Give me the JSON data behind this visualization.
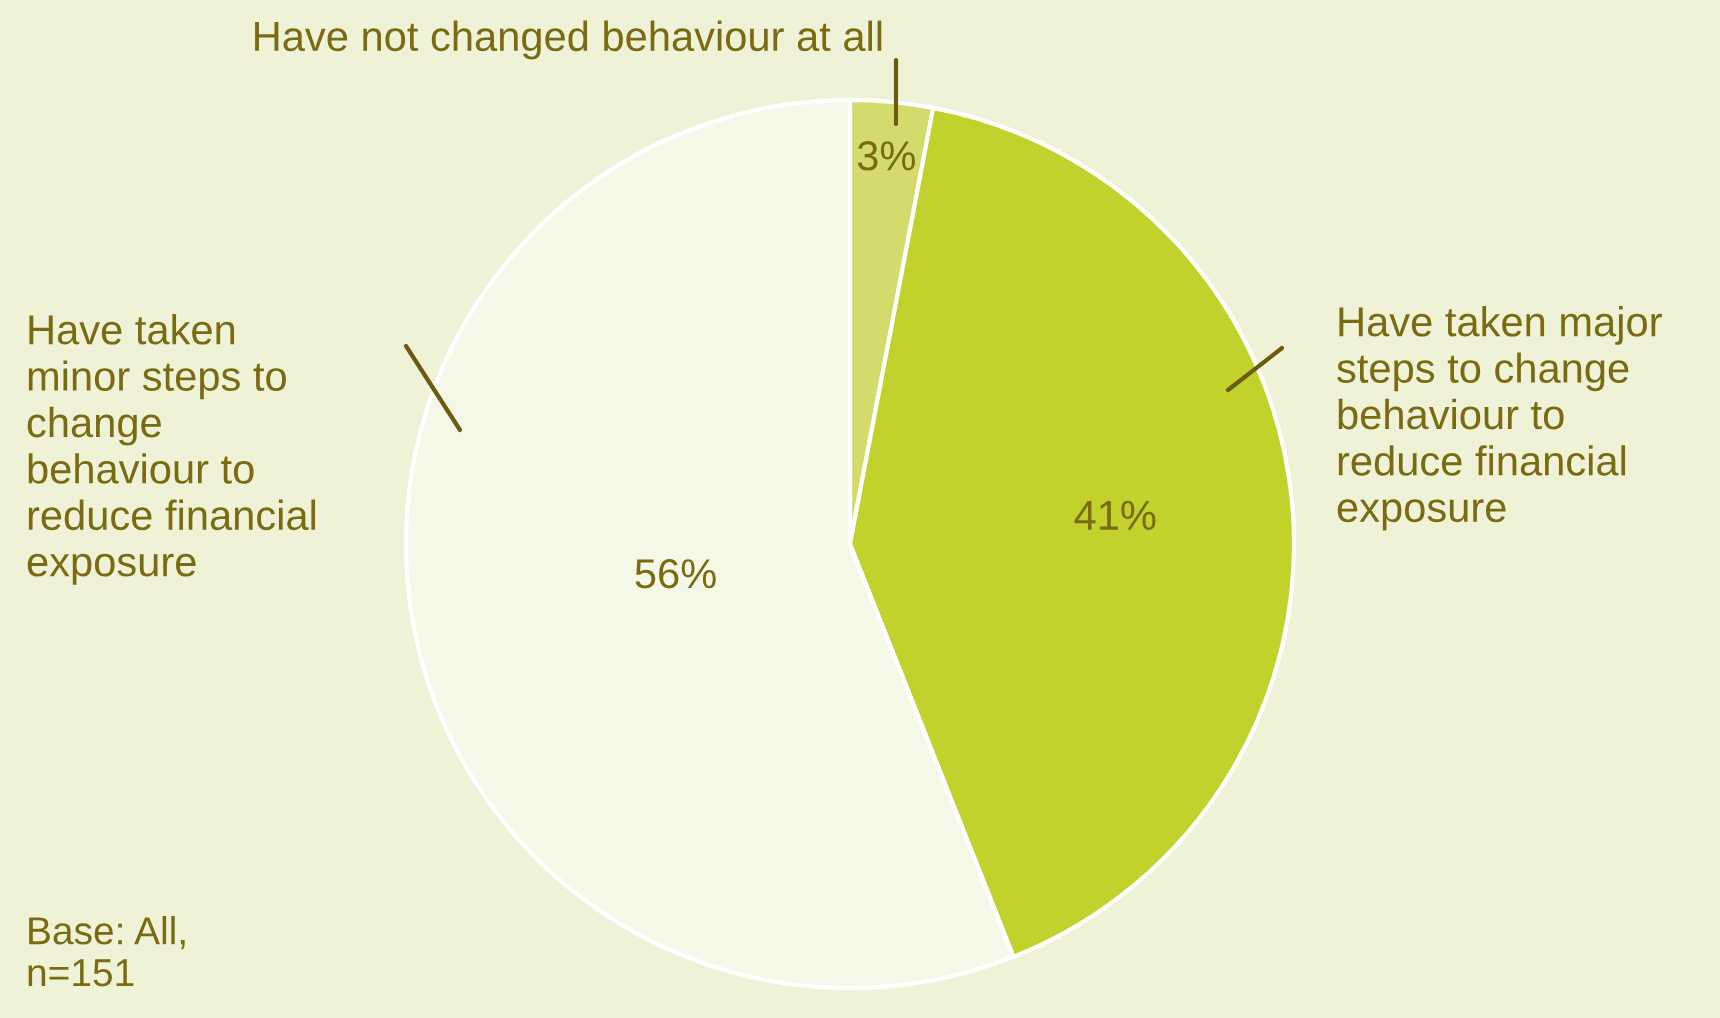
{
  "chart_data": {
    "type": "pie",
    "categories": [
      "Have not changed behaviour at all",
      "Have taken major\nsteps to change\nbehaviour to\nreduce financial\nexposure",
      "Have taken\nminor steps to\nchange\nbehaviour to\nreduce financial\nexposure"
    ],
    "values": [
      3,
      41,
      56
    ],
    "colors": [
      "#d4da6c",
      "#c2d12c",
      "#f5f8e7"
    ],
    "value_labels": [
      "3%",
      "41%",
      "56%"
    ],
    "annotations": [
      "Base: All,\nn=151"
    ]
  }
}
